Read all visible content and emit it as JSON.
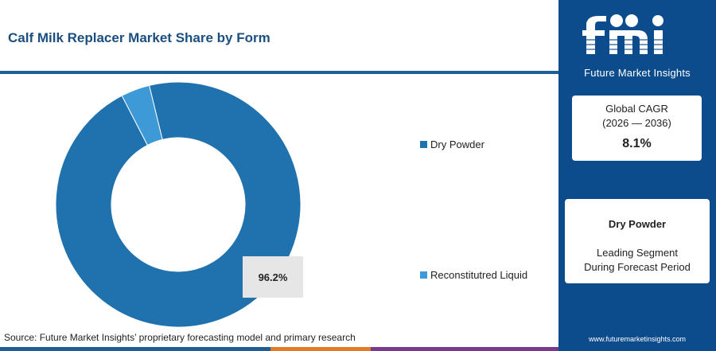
{
  "header": {
    "title": "Calf Milk Replacer Market Share by Form"
  },
  "chart_data": {
    "type": "pie",
    "variant": "donut",
    "title": "Calf Milk Replacer Market Share by Form",
    "categories": [
      "Dry Powder",
      "Reconstitutred Liquid"
    ],
    "values": [
      96.2,
      3.8
    ],
    "colors": [
      "#1f72ad",
      "#3d9ad6"
    ],
    "data_labels": [
      {
        "category": "Dry Powder",
        "text": "96.2%"
      }
    ],
    "legend_position": "right"
  },
  "legend": {
    "items": [
      {
        "label": "Dry Powder",
        "color": "#1f72ad"
      },
      {
        "label": "Reconstitutred Liquid",
        "color": "#3d9ad6"
      }
    ]
  },
  "source": {
    "text": "Source: Future Market Insights’ proprietary forecasting model and primary research"
  },
  "brand": {
    "logo_letters": "fmi",
    "name": "Future Market Insights",
    "website": "www.futuremarketinsights.com",
    "color": "#0d4c8c"
  },
  "cagr_card": {
    "label": "Global CAGR",
    "period": "(2026 — 2036)",
    "value": "8.1%"
  },
  "segment_card": {
    "name": "Dry Powder",
    "description_line1": "Leading Segment",
    "description_line2": "During Forecast Period"
  },
  "bottom_bar_colors": [
    "#1f5f96",
    "#e07b28",
    "#7a3a8c"
  ]
}
